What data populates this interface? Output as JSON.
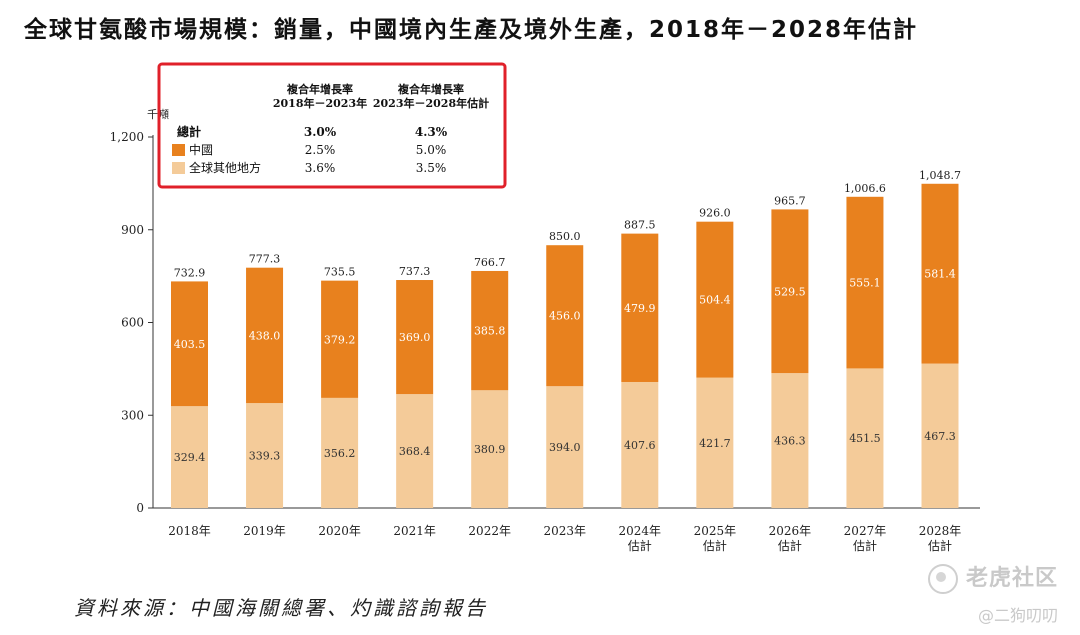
{
  "title": "全球甘氨酸市場規模：銷量，中國境內生產及境外生產，2018年－2028年估計",
  "source": "資料來源：中國海關總署、灼識諮詢報告",
  "watermark": {
    "brand": "老虎社区",
    "user": "@二狗叨叨"
  },
  "colors": {
    "china": "#E8811E",
    "rest": "#F4CB99",
    "highlight_box": "#E0202A"
  },
  "chart_data": {
    "type": "bar",
    "stacked": true,
    "unit_label": "千噸",
    "categories": [
      [
        "2018年"
      ],
      [
        "2019年"
      ],
      [
        "2020年"
      ],
      [
        "2021年"
      ],
      [
        "2022年"
      ],
      [
        "2023年"
      ],
      [
        "2024年",
        "估計"
      ],
      [
        "2025年",
        "估計"
      ],
      [
        "2026年",
        "估計"
      ],
      [
        "2027年",
        "估計"
      ],
      [
        "2028年",
        "估計"
      ]
    ],
    "ylim": [
      0,
      1200
    ],
    "yticks": [
      0,
      300,
      600,
      900,
      1200
    ],
    "ytick_labels": [
      "0",
      "300",
      "600",
      "900",
      "1,200"
    ],
    "grid": false,
    "series": [
      {
        "name": "全球其他地方",
        "values": [
          329.4,
          339.3,
          356.2,
          368.4,
          380.9,
          394.0,
          407.6,
          421.7,
          436.3,
          451.5,
          467.3
        ]
      },
      {
        "name": "中國",
        "values": [
          403.5,
          438.0,
          379.2,
          369.0,
          385.8,
          456.0,
          479.9,
          504.4,
          529.5,
          555.1,
          581.4
        ]
      }
    ],
    "totals": [
      "732.9",
      "777.3",
      "735.5",
      "737.3",
      "766.7",
      "850.0",
      "887.5",
      "926.0",
      "965.7",
      "1,006.6",
      "1,048.7"
    ],
    "legend": {
      "position": "top-left",
      "headers": [
        "複合年增長率\n2018年－2023年",
        "複合年增長率\n2023年－2028年估計"
      ],
      "rows": [
        {
          "label": "總計",
          "cagr_2018_2023": "3.0%",
          "cagr_2023_2028": "4.3%",
          "bold": true,
          "swatch": null
        },
        {
          "label": "中國",
          "cagr_2018_2023": "2.5%",
          "cagr_2023_2028": "5.0%",
          "bold": false,
          "swatch": "china"
        },
        {
          "label": "全球其他地方",
          "cagr_2018_2023": "3.6%",
          "cagr_2023_2028": "3.5%",
          "bold": false,
          "swatch": "rest"
        }
      ]
    }
  }
}
